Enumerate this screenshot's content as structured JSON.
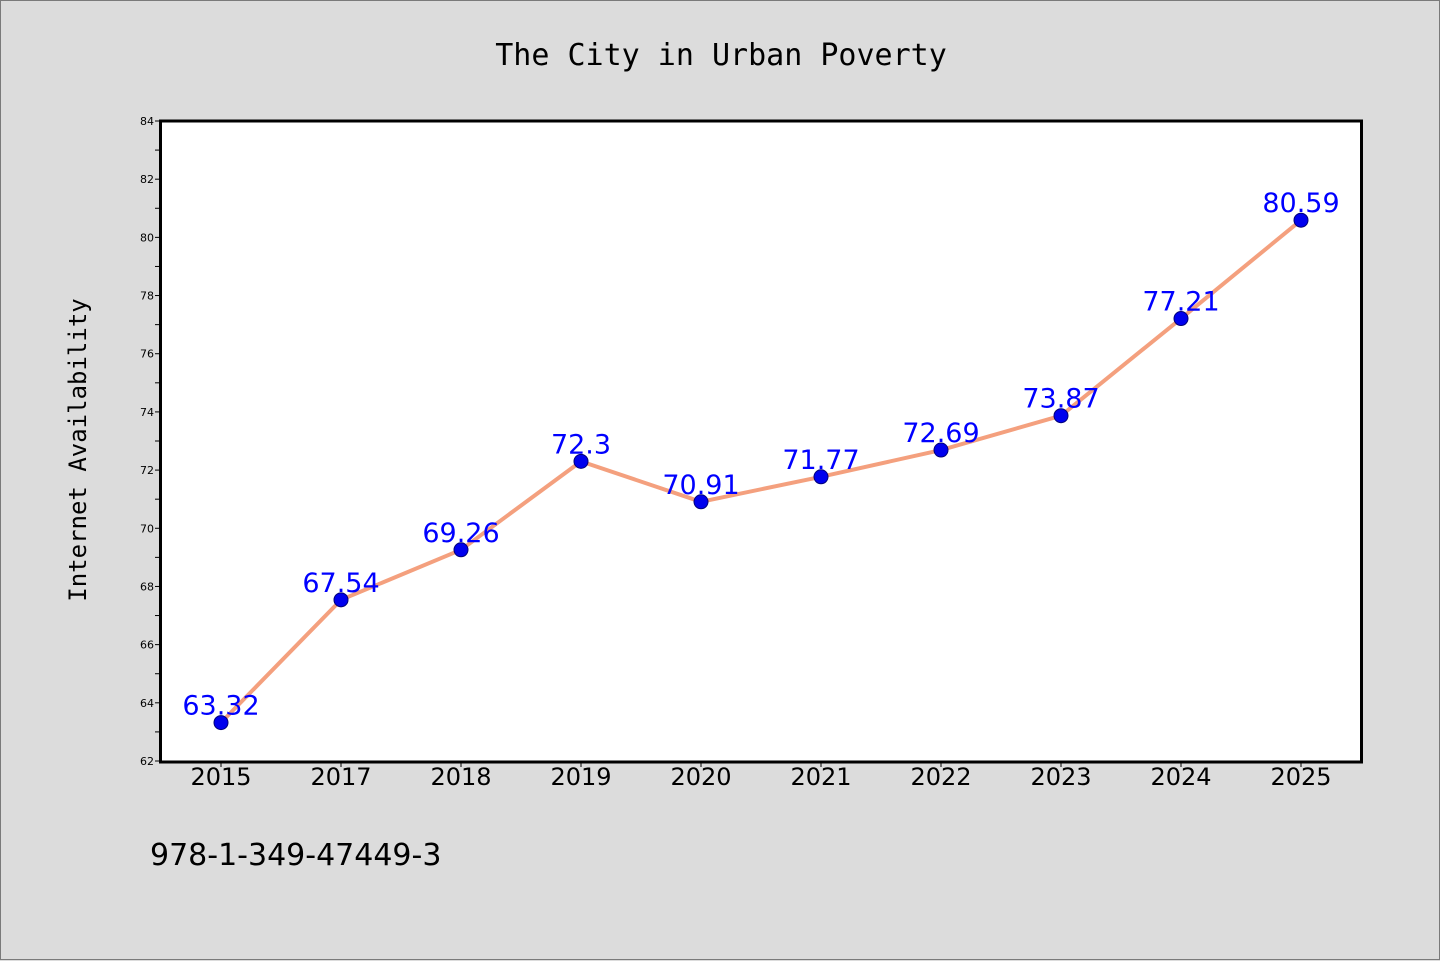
{
  "chart_data": {
    "type": "line",
    "title": "The City in Urban Poverty",
    "xlabel": "",
    "ylabel": "Internet Availability",
    "categories": [
      "2015",
      "2017",
      "2018",
      "2019",
      "2020",
      "2021",
      "2022",
      "2023",
      "2024",
      "2025"
    ],
    "series": [
      {
        "values": [
          63.32,
          67.54,
          69.26,
          72.3,
          70.91,
          71.77,
          72.69,
          73.87,
          77.21,
          80.59
        ],
        "data_labels": [
          "63.32",
          "67.54",
          "69.26",
          "72.3",
          "70.91",
          "71.77",
          "72.69",
          "73.87",
          "77.21",
          "80.59"
        ]
      }
    ],
    "ylim": [
      62,
      84
    ],
    "yticks": [
      "62",
      "64",
      "66",
      "68",
      "70",
      "72",
      "74",
      "76",
      "78",
      "80",
      "82",
      "84"
    ],
    "grid": false,
    "legend": "none",
    "colors": {
      "line": "#f4a07e",
      "marker_fill": "#0000ee",
      "marker_edge": "#00007a",
      "data_label": "#0000ff",
      "background": "#dcdcdc",
      "plot_background": "#ffffff"
    }
  },
  "footer": {
    "isbn": "978-1-349-47449-3"
  }
}
